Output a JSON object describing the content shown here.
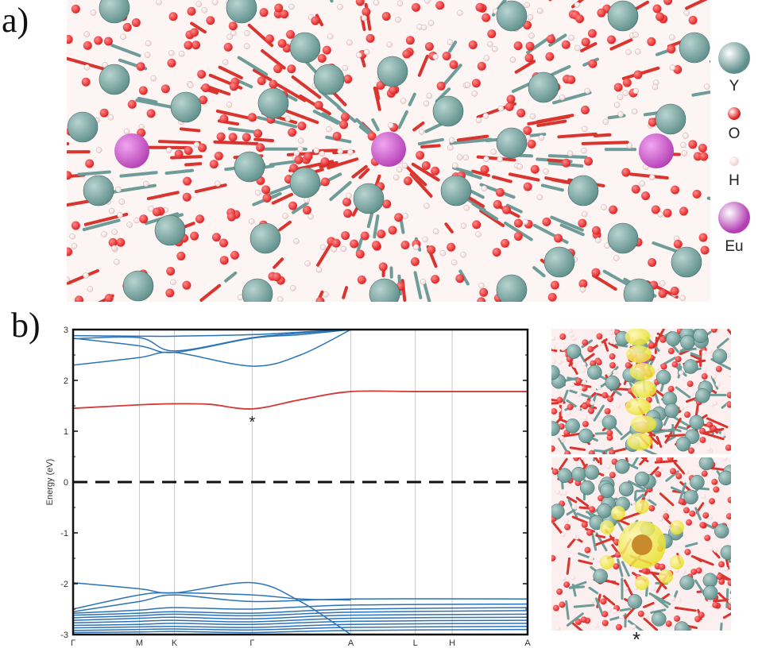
{
  "figure": {
    "panel_a_label": "a)",
    "panel_b_label": "b)",
    "inset_marker": "*"
  },
  "legend": {
    "items": [
      {
        "symbol": "Y",
        "color": "#5f8f8b"
      },
      {
        "symbol": "O",
        "color": "#dd1c1c"
      },
      {
        "symbol": "H",
        "color": "#f1d3d3"
      },
      {
        "symbol": "Eu",
        "color": "#b43fb4"
      }
    ]
  },
  "colors": {
    "yttrium": "#5f8f8b",
    "oxygen": "#dd1c1c",
    "hydrogen": "#f1d3d3",
    "europium": "#b43fb4",
    "charge_density": "#e8e020",
    "band_blue": "#2a73b8",
    "band_red": "#d43a3a"
  },
  "chart_data": {
    "type": "line",
    "ylabel": "Energy (eV)",
    "ylim": [
      -3,
      3
    ],
    "yticks": [
      "3",
      "2",
      "1",
      "0",
      "-1",
      "-2",
      "-3"
    ],
    "kpath_labels": [
      "Γ",
      "M",
      "K",
      "Γ",
      "A",
      "L",
      "H",
      "A"
    ],
    "kpath_positions": [
      0,
      0.146,
      0.223,
      0.394,
      0.611,
      0.753,
      0.834,
      1.0
    ],
    "fermi_level": 0,
    "marked_state": {
      "label": "*",
      "x": 0.394,
      "energy": 1.2
    },
    "series": [
      {
        "role": "conduction-1",
        "color": "#2a73b8",
        "x": [
          0,
          0.146,
          0.223,
          0.394,
          0.5,
          0.611
        ],
        "y": [
          2.88,
          2.87,
          2.87,
          2.9,
          2.95,
          3.0
        ]
      },
      {
        "role": "conduction-2",
        "color": "#2a73b8",
        "x": [
          0,
          0.146,
          0.223,
          0.394,
          0.5,
          0.611
        ],
        "y": [
          2.83,
          2.68,
          2.55,
          2.83,
          2.9,
          3.0
        ]
      },
      {
        "role": "conduction-3",
        "color": "#2a73b8",
        "x": [
          0,
          0.146,
          0.223,
          0.394,
          0.5,
          0.611
        ],
        "y": [
          2.3,
          2.45,
          2.55,
          2.28,
          2.5,
          3.0
        ]
      },
      {
        "role": "conduction-4",
        "color": "#2a73b8",
        "x": [
          0,
          0.146,
          0.223,
          0.394,
          0.5,
          0.611
        ],
        "y": [
          2.82,
          2.84,
          2.58,
          2.84,
          2.93,
          3.0
        ]
      },
      {
        "role": "defect-band",
        "color": "#d43a3a",
        "x": [
          0,
          0.146,
          0.223,
          0.3,
          0.394,
          0.5,
          0.611,
          0.753,
          0.834,
          1.0
        ],
        "y": [
          1.45,
          1.52,
          1.54,
          1.53,
          1.44,
          1.62,
          1.78,
          1.78,
          1.78,
          1.78
        ]
      },
      {
        "role": "valence-top-1",
        "color": "#2a73b8",
        "x": [
          0,
          0.146,
          0.223,
          0.394,
          0.5,
          0.611
        ],
        "y": [
          -1.98,
          -2.1,
          -2.18,
          -1.98,
          -2.35,
          -3.0
        ]
      },
      {
        "role": "valence-top-2",
        "color": "#2a73b8",
        "x": [
          0,
          0.146,
          0.223,
          0.394,
          0.5,
          0.611
        ],
        "y": [
          -2.5,
          -2.22,
          -2.18,
          -2.22,
          -2.3,
          -2.32
        ]
      },
      {
        "role": "valence-top-3",
        "color": "#2a73b8",
        "x": [
          0,
          0.146,
          0.223,
          0.394,
          0.611,
          1.0
        ],
        "y": [
          -2.55,
          -2.35,
          -2.22,
          -2.35,
          -2.3,
          -2.3
        ]
      },
      {
        "role": "valence-bundle-1",
        "color": "#2a73b8",
        "x": [
          0,
          0.146,
          0.223,
          0.394,
          0.611,
          1.0
        ],
        "y": [
          -2.58,
          -2.52,
          -2.47,
          -2.5,
          -2.42,
          -2.4
        ]
      },
      {
        "role": "valence-bundle-2",
        "color": "#2a73b8",
        "x": [
          0,
          0.146,
          0.223,
          0.394,
          0.611,
          1.0
        ],
        "y": [
          -2.62,
          -2.58,
          -2.55,
          -2.58,
          -2.5,
          -2.47
        ]
      },
      {
        "role": "valence-bundle-3",
        "color": "#2a73b8",
        "x": [
          0,
          0.146,
          0.223,
          0.394,
          0.611,
          1.0
        ],
        "y": [
          -2.67,
          -2.63,
          -2.6,
          -2.63,
          -2.56,
          -2.53
        ]
      },
      {
        "role": "valence-bundle-4",
        "color": "#2a73b8",
        "x": [
          0,
          0.146,
          0.223,
          0.394,
          0.611,
          1.0
        ],
        "y": [
          -2.72,
          -2.68,
          -2.66,
          -2.69,
          -2.62,
          -2.6
        ]
      },
      {
        "role": "valence-bundle-5",
        "color": "#2a73b8",
        "x": [
          0,
          0.146,
          0.223,
          0.394,
          0.611,
          1.0
        ],
        "y": [
          -2.77,
          -2.74,
          -2.72,
          -2.75,
          -2.68,
          -2.66
        ]
      },
      {
        "role": "valence-bundle-6",
        "color": "#2a73b8",
        "x": [
          0,
          0.146,
          0.223,
          0.394,
          0.611,
          1.0
        ],
        "y": [
          -2.82,
          -2.8,
          -2.78,
          -2.8,
          -2.74,
          -2.72
        ]
      },
      {
        "role": "valence-bundle-7",
        "color": "#2a73b8",
        "x": [
          0,
          0.146,
          0.223,
          0.394,
          0.611,
          1.0
        ],
        "y": [
          -2.87,
          -2.85,
          -2.84,
          -2.86,
          -2.8,
          -2.78
        ]
      },
      {
        "role": "valence-bundle-8",
        "color": "#2a73b8",
        "x": [
          0,
          0.146,
          0.223,
          0.394,
          0.611,
          1.0
        ],
        "y": [
          -2.92,
          -2.9,
          -2.89,
          -2.91,
          -2.86,
          -2.84
        ]
      },
      {
        "role": "valence-bundle-9",
        "color": "#2a73b8",
        "x": [
          0,
          0.146,
          0.223,
          0.394,
          0.611,
          1.0
        ],
        "y": [
          -2.96,
          -2.95,
          -2.94,
          -2.96,
          -2.92,
          -2.9
        ]
      }
    ]
  }
}
